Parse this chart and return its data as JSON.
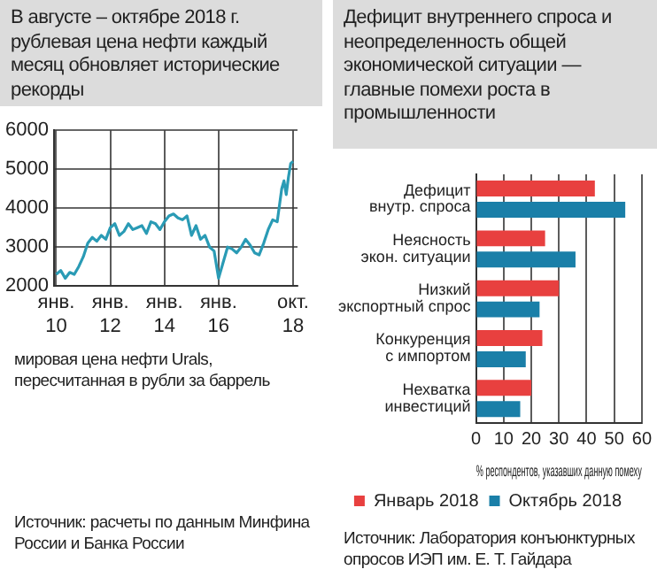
{
  "chart_data": [
    {
      "type": "line",
      "title": "В августе – октябре 2018 г. рублевая цена нефти каждый месяц обновляет исторические рекорды",
      "annotations": [
        "мировая цена нефти Urals, пересчитанная в рубли за баррель",
        "Источник: расчеты по данным Минфина России и Банка России"
      ],
      "x": [
        "2010-01",
        "2010-03",
        "2010-05",
        "2010-07",
        "2010-09",
        "2010-11",
        "2011-01",
        "2011-03",
        "2011-05",
        "2011-07",
        "2011-09",
        "2011-11",
        "2012-01",
        "2012-03",
        "2012-05",
        "2012-07",
        "2012-09",
        "2012-11",
        "2013-01",
        "2013-03",
        "2013-05",
        "2013-07",
        "2013-09",
        "2013-11",
        "2014-01",
        "2014-03",
        "2014-05",
        "2014-07",
        "2014-09",
        "2014-11",
        "2015-01",
        "2015-03",
        "2015-05",
        "2015-07",
        "2015-09",
        "2015-11",
        "2016-01",
        "2016-03",
        "2016-05",
        "2016-07",
        "2016-09",
        "2016-11",
        "2017-01",
        "2017-03",
        "2017-05",
        "2017-07",
        "2017-09",
        "2017-11",
        "2018-01",
        "2018-03",
        "2018-05",
        "2018-06",
        "2018-07",
        "2018-08",
        "2018-09",
        "2018-10"
      ],
      "series": [
        {
          "color": "#2a9bb5",
          "values": [
            2300,
            2400,
            2200,
            2350,
            2300,
            2500,
            2750,
            3100,
            3250,
            3150,
            3300,
            3200,
            3500,
            3600,
            3300,
            3400,
            3600,
            3450,
            3500,
            3550,
            3350,
            3650,
            3600,
            3450,
            3650,
            3800,
            3850,
            3750,
            3700,
            3800,
            3300,
            3550,
            3200,
            3300,
            3000,
            2900,
            2200,
            2600,
            3000,
            2950,
            2850,
            3000,
            3200,
            3050,
            2850,
            2800,
            3100,
            3450,
            3700,
            3650,
            4500,
            4700,
            4350,
            4800,
            5150,
            5200
          ]
        }
      ],
      "xlim": [
        "2009-12",
        "2018-12"
      ],
      "xticks": [
        {
          "value": "2010-01",
          "label": "янв. 10"
        },
        {
          "value": "2012-01",
          "label": "янв. 12"
        },
        {
          "value": "2014-01",
          "label": "янв. 14"
        },
        {
          "value": "2016-01",
          "label": "янв. 16"
        },
        {
          "value": "2018-10",
          "label": "окт. 18"
        }
      ],
      "ylim": [
        2000,
        6000
      ],
      "yticks": [
        2000,
        3000,
        4000,
        5000,
        6000
      ],
      "grid": true
    },
    {
      "type": "bar",
      "orientation": "horizontal",
      "title": "Дефицит внутреннего спроса и неопределенность общей экономической ситуации — главные помехи роста в промышленности",
      "xlabel": "% респондентов, указавших данную помеху",
      "annotations": [
        "Источник: Лаборатория конъюнктурных опросов ИЭП им. Е. Т. Гайдара"
      ],
      "categories": [
        "Дефицит\nвнутр. спроса",
        "Неясность\nэкон. ситуации",
        "Низкий\nэкспортный спрос",
        "Конкуренция\nс импортом",
        "Нехватка\nинвестиций"
      ],
      "series": [
        {
          "name": "Январь 2018",
          "color": "#e8403f",
          "values": [
            43,
            25,
            30,
            24,
            20
          ]
        },
        {
          "name": "Октябрь 2018",
          "color": "#1a7fa8",
          "values": [
            54,
            36,
            23,
            18,
            16
          ]
        }
      ],
      "xlim": [
        0,
        60
      ],
      "xticks": [
        0,
        10,
        20,
        30,
        40,
        50,
        60
      ],
      "grid": "x",
      "legend": "bottom"
    }
  ]
}
